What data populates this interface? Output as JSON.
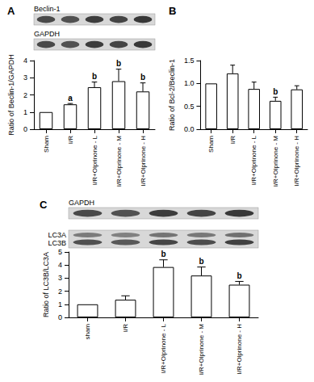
{
  "chart_data": [
    {
      "type": "bar",
      "title": "A",
      "y_label": "Ratio of Beclin-1/GAPDH",
      "blots": [
        {
          "labels": [
            "Beclin-1"
          ]
        },
        {
          "labels": [
            "GAPDH"
          ]
        }
      ],
      "categories": [
        "Sham",
        "I/R",
        "I/R+Olprinone - L",
        "I/R+Olprinone - M",
        "I/R+Olprinone - H"
      ],
      "values": [
        1.0,
        1.45,
        2.45,
        2.8,
        2.2
      ],
      "errors": [
        0,
        0.05,
        0.3,
        0.7,
        0.5
      ],
      "significance": [
        null,
        "a",
        "b",
        "b",
        "b"
      ],
      "color": "#ffffff",
      "ylim": [
        0,
        4
      ],
      "yticks": [
        0,
        1,
        2,
        3,
        4
      ],
      "grid": false
    },
    {
      "type": "bar",
      "title": "B",
      "y_label": "Ratio of Bcl-2/Beclin-1",
      "categories": [
        "Sham",
        "I/R",
        "I/R+Olprinone - L",
        "I/R+Olprinone - M",
        "I/R+Olprinone - H"
      ],
      "values": [
        1.0,
        1.22,
        0.88,
        0.62,
        0.87
      ],
      "errors": [
        0,
        0.18,
        0.15,
        0.08,
        0.08
      ],
      "significance": [
        null,
        null,
        null,
        "b",
        null
      ],
      "color": "#ffffff",
      "ylim": [
        0,
        1.5
      ],
      "yticks": [
        {
          "value": 0,
          "label": "0.0"
        },
        0.5,
        {
          "value": 1,
          "label": "1.0"
        },
        1.5
      ],
      "grid": false
    },
    {
      "type": "bar",
      "title": "C",
      "y_label": "Ratio of LC3B/LC3A",
      "blots": [
        {
          "labels": [
            "GAPDH"
          ]
        },
        {
          "labels": [
            "LC3A",
            "LC3B"
          ]
        }
      ],
      "categories": [
        "sham",
        "I/R",
        "I/R+Olprinone - L",
        "I/R+Olprinone - M",
        "I/R+Olprinone - H"
      ],
      "values": [
        1.0,
        1.35,
        3.85,
        3.2,
        2.5
      ],
      "errors": [
        0,
        0.3,
        0.55,
        0.65,
        0.25
      ],
      "significance": [
        null,
        null,
        "b",
        "b",
        "b"
      ],
      "color": "#ffffff",
      "ylim": [
        0,
        5
      ],
      "yticks": [
        0,
        1,
        2,
        3,
        4,
        5
      ],
      "grid": false
    }
  ]
}
